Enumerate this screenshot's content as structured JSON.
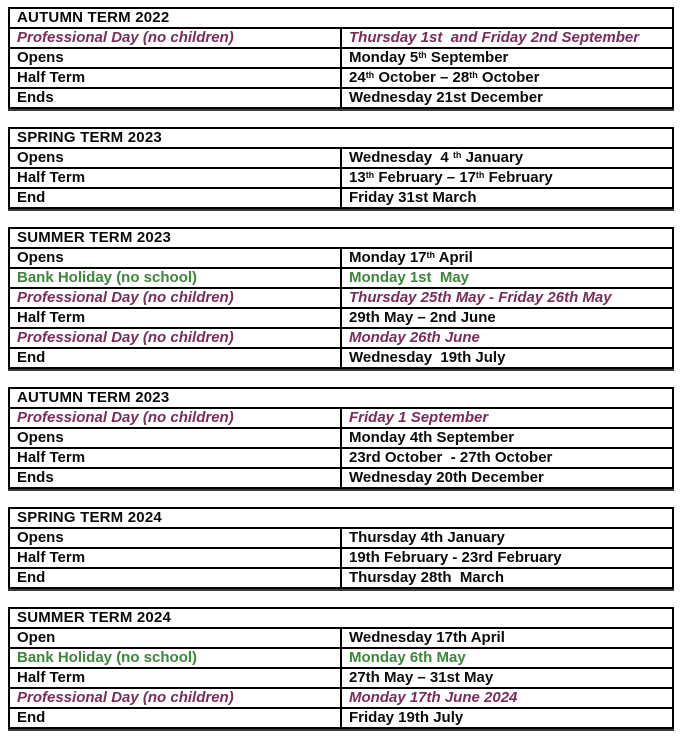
{
  "colors": {
    "background": "#ffffff",
    "text": "#0b0b0b",
    "professional_day": "#7B2C5B",
    "bank_holiday": "#3C873C",
    "table_border": "#000000",
    "table_shadow": "#3c3c3c"
  },
  "tables": [
    {
      "title": "AUTUMN TERM 2022",
      "rows": [
        {
          "label": "Professional Day (no children)",
          "value": "Thursday 1st  and Friday 2nd September",
          "style": "professional"
        },
        {
          "label": "Opens",
          "value": "Monday 5{th} September",
          "style": "normal"
        },
        {
          "label": "Half Term",
          "value": "24{th} October – 28{th} October",
          "style": "normal"
        },
        {
          "label": "Ends",
          "value": "Wednesday 21st December",
          "style": "normal"
        }
      ]
    },
    {
      "title": "SPRING TERM 2023",
      "rows": [
        {
          "label": "Opens",
          "value": "Wednesday  4 {th} January",
          "style": "normal"
        },
        {
          "label": "Half Term",
          "value": "13{th} February – 17{th} February",
          "style": "normal"
        },
        {
          "label": "End",
          "value": "Friday 31st March",
          "style": "normal"
        }
      ]
    },
    {
      "title": "SUMMER TERM 2023",
      "rows": [
        {
          "label": "Opens",
          "value": "Monday 17{th} April",
          "style": "normal"
        },
        {
          "label": "Bank Holiday (no school)",
          "value": "Monday 1st  May",
          "style": "bank"
        },
        {
          "label": "Professional Day (no children)",
          "value": "Thursday 25th May - Friday 26th May",
          "style": "professional"
        },
        {
          "label": "Half Term",
          "value": "29th May – 2nd June",
          "style": "normal"
        },
        {
          "label": "Professional Day (no children)",
          "value": "Monday 26th June",
          "style": "professional"
        },
        {
          "label": "End",
          "value": "Wednesday  19th July",
          "style": "normal"
        }
      ]
    },
    {
      "title": "AUTUMN TERM 2023",
      "rows": [
        {
          "label": "Professional Day (no children)",
          "value": "Friday 1 September",
          "style": "professional"
        },
        {
          "label": "Opens",
          "value": "Monday 4th September",
          "style": "normal"
        },
        {
          "label": "Half Term",
          "value": "23rd October  - 27th October",
          "style": "normal"
        },
        {
          "label": "Ends",
          "value": "Wednesday 20th December",
          "style": "normal"
        }
      ]
    },
    {
      "title": "SPRING TERM 2024",
      "rows": [
        {
          "label": "Opens",
          "value": "Thursday 4th January",
          "style": "normal"
        },
        {
          "label": "Half Term",
          "value": "19th February - 23rd February",
          "style": "normal"
        },
        {
          "label": "End",
          "value": "Thursday 28th  March",
          "style": "normal"
        }
      ]
    },
    {
      "title": "SUMMER TERM 2024",
      "rows": [
        {
          "label": "Open",
          "value": "Wednesday 17th April",
          "style": "normal"
        },
        {
          "label": "Bank Holiday (no school)",
          "value": "Monday 6th May",
          "style": "bank"
        },
        {
          "label": "Half Term",
          "value": "27th May – 31st May",
          "style": "normal"
        },
        {
          "label": "Professional Day (no children)",
          "value": "Monday 17th June 2024",
          "style": "professional"
        },
        {
          "label": "End",
          "value": "Friday 19th July",
          "style": "normal"
        }
      ]
    }
  ]
}
